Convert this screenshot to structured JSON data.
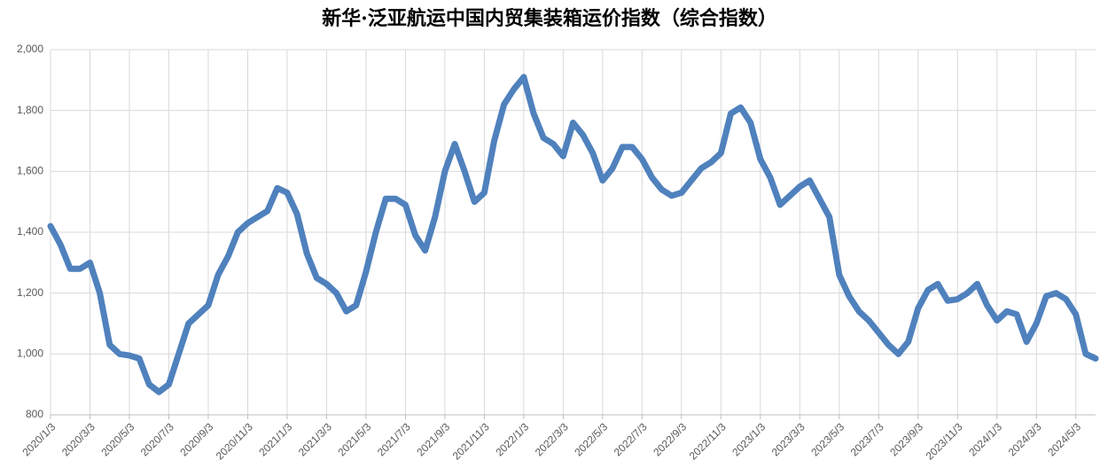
{
  "chart_data": {
    "type": "line",
    "title": "新华·泛亚航运中国内贸集装箱运价指数（综合指数）",
    "categories": [
      "2020/1/3",
      null,
      null,
      null,
      "2020/3/3",
      null,
      null,
      null,
      "2020/5/3",
      null,
      null,
      null,
      "2020/7/3",
      null,
      null,
      null,
      "2020/9/3",
      null,
      null,
      null,
      "2020/11/3",
      null,
      null,
      null,
      "2021/1/3",
      null,
      null,
      null,
      "2021/3/3",
      null,
      null,
      null,
      "2021/5/3",
      null,
      null,
      null,
      "2021/7/3",
      null,
      null,
      null,
      "2021/9/3",
      null,
      null,
      null,
      "2021/11/3",
      null,
      null,
      null,
      "2022/1/3",
      null,
      null,
      null,
      "2022/3/3",
      null,
      null,
      null,
      "2022/5/3",
      null,
      null,
      null,
      "2022/7/3",
      null,
      null,
      null,
      "2022/9/3",
      null,
      null,
      null,
      "2022/11/3",
      null,
      null,
      null,
      "2023/1/3",
      null,
      null,
      null,
      "2023/3/3",
      null,
      null,
      null,
      "2023/5/3",
      null,
      null,
      null,
      "2023/7/3",
      null,
      null,
      null,
      "2023/9/3",
      null,
      null,
      null,
      "2023/11/3",
      null,
      null,
      null,
      "2024/1/3",
      null,
      null,
      null,
      "2024/3/3",
      null,
      null,
      null,
      "2024/5/3",
      null,
      null
    ],
    "series": [
      {
        "color": "#4f81bd",
        "values": [
          1420,
          1360,
          1280,
          1280,
          1300,
          1200,
          1030,
          1000,
          995,
          985,
          900,
          875,
          900,
          1000,
          1100,
          1130,
          1160,
          1260,
          1320,
          1400,
          1430,
          1450,
          1470,
          1545,
          1530,
          1460,
          1330,
          1250,
          1230,
          1200,
          1140,
          1160,
          1270,
          1400,
          1510,
          1510,
          1490,
          1390,
          1340,
          1450,
          1600,
          1690,
          1600,
          1500,
          1530,
          1700,
          1820,
          1870,
          1910,
          1790,
          1710,
          1690,
          1650,
          1760,
          1720,
          1660,
          1570,
          1610,
          1680,
          1680,
          1640,
          1580,
          1540,
          1520,
          1530,
          1570,
          1610,
          1630,
          1660,
          1790,
          1810,
          1760,
          1640,
          1580,
          1490,
          1520,
          1550,
          1570,
          1510,
          1450,
          1260,
          1190,
          1140,
          1110,
          1070,
          1030,
          1000,
          1040,
          1150,
          1210,
          1230,
          1175,
          1180,
          1200,
          1230,
          1160,
          1110,
          1140,
          1130,
          1040,
          1100,
          1190,
          1200,
          1180,
          1130,
          1000,
          985
        ]
      }
    ],
    "ylim": [
      800,
      2000
    ],
    "yticks": [
      800,
      {
        "value": 1000,
        "label": "1,000"
      },
      {
        "value": 1200,
        "label": "1,200"
      },
      {
        "value": 1400,
        "label": "1,400"
      },
      {
        "value": 1600,
        "label": "1,600"
      },
      {
        "value": 1800,
        "label": "1,800"
      },
      {
        "value": 2000,
        "label": "2,000"
      }
    ],
    "grid": true
  }
}
